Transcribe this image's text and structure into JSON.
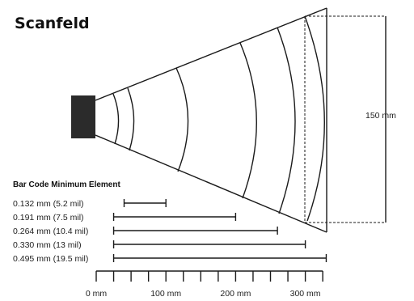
{
  "title": "Scanfeld",
  "field_height_label": "150 mm",
  "legend_title": "Bar Code Minimum Element",
  "bars": [
    {
      "label": "0.132 mm (5.2 mil)",
      "near_mm": 40,
      "far_mm": 100
    },
    {
      "label": "0.191 mm (7.5 mil)",
      "near_mm": 25,
      "far_mm": 200
    },
    {
      "label": "0.264 mm (10.4 mil)",
      "near_mm": 25,
      "far_mm": 260
    },
    {
      "label": "0.330 mm (13 mil)",
      "near_mm": 25,
      "far_mm": 300
    },
    {
      "label": "0.495 mm (19.5 mil)",
      "near_mm": 25,
      "far_mm": 330
    }
  ],
  "axis": {
    "ticks": [
      {
        "value": 0,
        "label": "0 mm"
      },
      {
        "value": 100,
        "label": "100 mm"
      },
      {
        "value": 200,
        "label": "200 mm"
      },
      {
        "value": 300,
        "label": "300 mm"
      }
    ],
    "minor_step": 25,
    "max": 325
  }
}
